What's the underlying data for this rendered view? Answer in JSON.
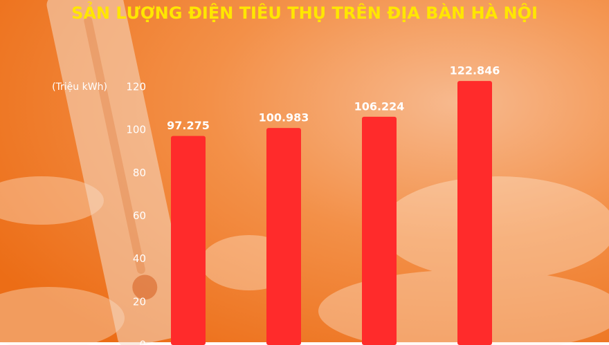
{
  "chart_data": {
    "type": "bar",
    "title": "SẢN LƯỢNG ĐIỆN TIÊU THỤ TRÊN ĐỊA BÀN HÀ NỘI",
    "y_label": "(Triệu kWh)",
    "categories": [
      null,
      null,
      null,
      null
    ],
    "values": [
      97.275,
      100.983,
      106.224,
      122.846
    ],
    "color": "#ff2b2b",
    "ylim": [
      0,
      120
    ],
    "yticks": [
      0,
      20,
      40,
      60,
      80,
      100,
      120
    ],
    "grid": false
  }
}
